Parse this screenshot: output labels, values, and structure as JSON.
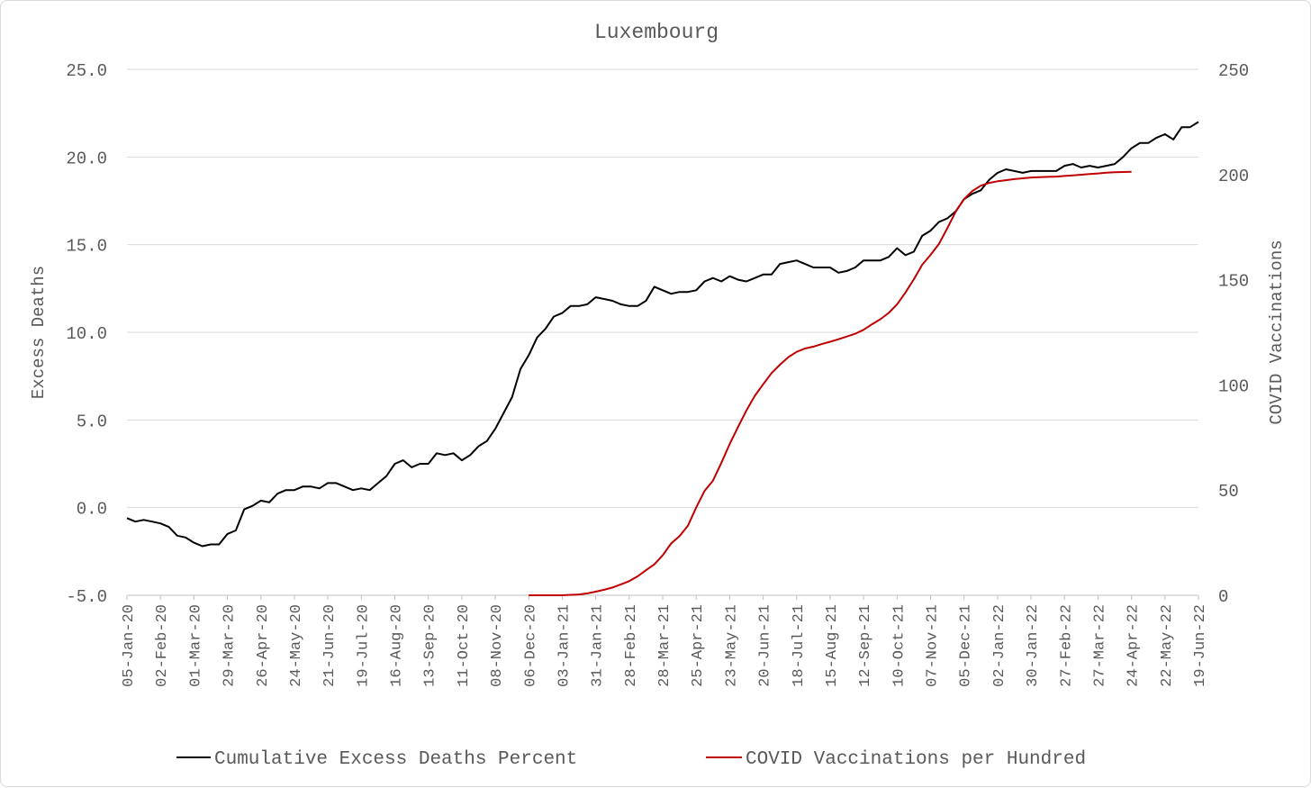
{
  "chart_data": {
    "type": "line",
    "title": "Luxembourg",
    "ylabel_left": "Excess Deaths",
    "ylabel_right": "COVID Vaccinations",
    "ylim_left": [
      -5,
      25
    ],
    "ylim_right": [
      0,
      250
    ],
    "yticks_left": [
      "-5.0",
      "0.0",
      "5.0",
      "10.0",
      "15.0",
      "20.0",
      "25.0"
    ],
    "yticks_right": [
      "0",
      "50",
      "100",
      "150",
      "200",
      "250"
    ],
    "x_tick_labels": [
      "05-Jan-20",
      "02-Feb-20",
      "01-Mar-20",
      "29-Mar-20",
      "26-Apr-20",
      "24-May-20",
      "21-Jun-20",
      "19-Jul-20",
      "16-Aug-20",
      "13-Sep-20",
      "11-Oct-20",
      "08-Nov-20",
      "06-Dec-20",
      "03-Jan-21",
      "31-Jan-21",
      "28-Feb-21",
      "28-Mar-21",
      "25-Apr-21",
      "23-May-21",
      "20-Jun-21",
      "18-Jul-21",
      "15-Aug-21",
      "12-Sep-21",
      "10-Oct-21",
      "07-Nov-21",
      "05-Dec-21",
      "02-Jan-22",
      "30-Jan-22",
      "27-Feb-22",
      "27-Mar-22",
      "24-Apr-22",
      "22-May-22",
      "19-Jun-22"
    ],
    "grid": true,
    "legend_position": "bottom",
    "series": [
      {
        "name": "Cumulative Excess Deaths Percent",
        "axis": "left",
        "color": "#000000",
        "start_week": 0,
        "values": [
          -0.6,
          -0.8,
          -0.7,
          -0.8,
          -0.9,
          -1.1,
          -1.6,
          -1.7,
          -2.0,
          -2.2,
          -2.1,
          -2.1,
          -1.5,
          -1.3,
          -0.1,
          0.1,
          0.4,
          0.3,
          0.8,
          1.0,
          1.0,
          1.2,
          1.2,
          1.1,
          1.4,
          1.4,
          1.2,
          1.0,
          1.1,
          1.0,
          1.4,
          1.8,
          2.5,
          2.7,
          2.3,
          2.5,
          2.5,
          3.1,
          3.0,
          3.1,
          2.7,
          3.0,
          3.5,
          3.8,
          4.5,
          5.4,
          6.3,
          7.9,
          8.7,
          9.7,
          10.2,
          10.9,
          11.1,
          11.5,
          11.5,
          11.6,
          12.0,
          11.9,
          11.8,
          11.6,
          11.5,
          11.5,
          11.8,
          12.6,
          12.4,
          12.2,
          12.3,
          12.3,
          12.4,
          12.9,
          13.1,
          12.9,
          13.2,
          13.0,
          12.9,
          13.1,
          13.3,
          13.3,
          13.9,
          14.0,
          14.1,
          13.9,
          13.7,
          13.7,
          13.7,
          13.4,
          13.5,
          13.7,
          14.1,
          14.1,
          14.1,
          14.3,
          14.8,
          14.4,
          14.6,
          15.5,
          15.8,
          16.3,
          16.5,
          16.9,
          17.6,
          17.9,
          18.1,
          18.7,
          19.1,
          19.3,
          19.2,
          19.1,
          19.2,
          19.2,
          19.2,
          19.2,
          19.5,
          19.6,
          19.4,
          19.5,
          19.4,
          19.5,
          19.6,
          20.0,
          20.5,
          20.8,
          20.8,
          21.1,
          21.3,
          21.0,
          21.7,
          21.7,
          22.0
        ]
      },
      {
        "name": "COVID Vaccinations per Hundred",
        "axis": "right",
        "color": "#c00000",
        "start_week": 48,
        "values": [
          0,
          0,
          0,
          0,
          0,
          0.2,
          0.4,
          0.9,
          1.7,
          2.6,
          3.7,
          5.2,
          6.7,
          9.0,
          11.9,
          14.7,
          19.0,
          24.6,
          28.1,
          33.0,
          41.7,
          49.6,
          54.5,
          62.9,
          71.9,
          80.0,
          87.9,
          94.8,
          100.3,
          105.6,
          109.6,
          113.2,
          115.7,
          117.3,
          118.2,
          119.4,
          120.5,
          121.7,
          123.0,
          124.3,
          126.2,
          128.8,
          131.2,
          134.2,
          138.3,
          143.9,
          150.2,
          157.1,
          161.8,
          167.0,
          174.5,
          182.3,
          188.3,
          192.2,
          194.7,
          196.0,
          196.8,
          197.3,
          197.8,
          198.2,
          198.6,
          198.7,
          198.9,
          199.0,
          199.3,
          199.6,
          199.9,
          200.2,
          200.5,
          200.9,
          201.1,
          201.2,
          201.3
        ]
      }
    ]
  }
}
